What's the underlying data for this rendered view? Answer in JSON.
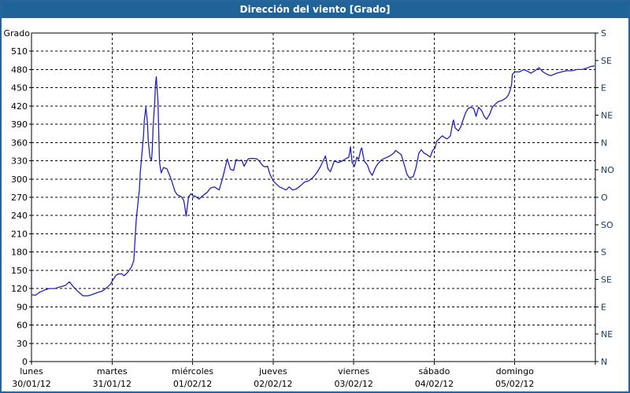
{
  "window": {
    "title": "Dirección del viento [Grado]"
  },
  "colors": {
    "titlebar_bg": "#1f6399",
    "titlebar_text": "#ffffff",
    "outer_border": "#27649c",
    "line": "#2222bb",
    "axis": "#000000",
    "grid": "#000000",
    "tick_text": "#000000",
    "compass_text": "#1b3a66"
  },
  "chart_data": {
    "type": "line",
    "title": "Dirección del viento [Grado]",
    "grid": "dashed",
    "legend_position": "none",
    "y_left": {
      "label": "Grado",
      "min": 0,
      "max": 540,
      "tick_step": 30,
      "ticks": [
        510,
        480,
        450,
        420,
        390,
        360,
        330,
        300,
        270,
        240,
        210,
        180,
        150,
        120,
        90,
        60,
        30,
        0
      ]
    },
    "y_right": {
      "label": "",
      "ticks": [
        {
          "value": 540,
          "label": "S"
        },
        {
          "value": 495,
          "label": "SE"
        },
        {
          "value": 450,
          "label": "E"
        },
        {
          "value": 405,
          "label": "NE"
        },
        {
          "value": 360,
          "label": "N"
        },
        {
          "value": 315,
          "label": "NO"
        },
        {
          "value": 270,
          "label": "O"
        },
        {
          "value": 225,
          "label": "SO"
        },
        {
          "value": 180,
          "label": "S"
        },
        {
          "value": 135,
          "label": "SE"
        },
        {
          "value": 90,
          "label": "E"
        },
        {
          "value": 45,
          "label": "NE"
        },
        {
          "value": 0,
          "label": "N"
        }
      ]
    },
    "x": {
      "span_days": 7,
      "days": [
        {
          "name": "lunes",
          "date": "30/01/12"
        },
        {
          "name": "martes",
          "date": "31/01/12"
        },
        {
          "name": "miércoles",
          "date": "01/02/12"
        },
        {
          "name": "jueves",
          "date": "02/02/12"
        },
        {
          "name": "viernes",
          "date": "03/02/12"
        },
        {
          "name": "sábado",
          "date": "04/02/12"
        },
        {
          "name": "domingo",
          "date": "05/02/12"
        }
      ]
    },
    "series": [
      {
        "name": "wind-direction-degrees",
        "units": "Grado",
        "points": [
          [
            0.0,
            110
          ],
          [
            0.05,
            109
          ],
          [
            0.1,
            114
          ],
          [
            0.17,
            118
          ],
          [
            0.22,
            120
          ],
          [
            0.29,
            120
          ],
          [
            0.36,
            123
          ],
          [
            0.42,
            125
          ],
          [
            0.47,
            131
          ],
          [
            0.52,
            123
          ],
          [
            0.57,
            116
          ],
          [
            0.64,
            108
          ],
          [
            0.7,
            108
          ],
          [
            0.75,
            110
          ],
          [
            0.81,
            113
          ],
          [
            0.88,
            116
          ],
          [
            0.93,
            121
          ],
          [
            0.98,
            127
          ],
          [
            1.01,
            134
          ],
          [
            1.05,
            142
          ],
          [
            1.08,
            144
          ],
          [
            1.12,
            144
          ],
          [
            1.15,
            141
          ],
          [
            1.19,
            146
          ],
          [
            1.24,
            155
          ],
          [
            1.27,
            166
          ],
          [
            1.3,
            233
          ],
          [
            1.32,
            258
          ],
          [
            1.34,
            284
          ],
          [
            1.35,
            310
          ],
          [
            1.37,
            340
          ],
          [
            1.39,
            371
          ],
          [
            1.4,
            396
          ],
          [
            1.42,
            418
          ],
          [
            1.44,
            392
          ],
          [
            1.45,
            362
          ],
          [
            1.47,
            336
          ],
          [
            1.49,
            331
          ],
          [
            1.5,
            349
          ],
          [
            1.51,
            388
          ],
          [
            1.53,
            427
          ],
          [
            1.54,
            457
          ],
          [
            1.55,
            468
          ],
          [
            1.57,
            427
          ],
          [
            1.58,
            375
          ],
          [
            1.59,
            327
          ],
          [
            1.61,
            310
          ],
          [
            1.64,
            319
          ],
          [
            1.68,
            317
          ],
          [
            1.71,
            308
          ],
          [
            1.74,
            297
          ],
          [
            1.78,
            280
          ],
          [
            1.81,
            274
          ],
          [
            1.86,
            271
          ],
          [
            1.89,
            265
          ],
          [
            1.9,
            258
          ],
          [
            1.92,
            239
          ],
          [
            1.93,
            250
          ],
          [
            1.95,
            271
          ],
          [
            1.98,
            276
          ],
          [
            2.0,
            273
          ],
          [
            2.03,
            272
          ],
          [
            2.08,
            267
          ],
          [
            2.12,
            272
          ],
          [
            2.18,
            278
          ],
          [
            2.22,
            285
          ],
          [
            2.27,
            287
          ],
          [
            2.33,
            282
          ],
          [
            2.37,
            300
          ],
          [
            2.43,
            333
          ],
          [
            2.47,
            316
          ],
          [
            2.51,
            314
          ],
          [
            2.54,
            332
          ],
          [
            2.57,
            330
          ],
          [
            2.61,
            331
          ],
          [
            2.64,
            321
          ],
          [
            2.69,
            333
          ],
          [
            2.74,
            334
          ],
          [
            2.8,
            333
          ],
          [
            2.83,
            329
          ],
          [
            2.87,
            322
          ],
          [
            2.9,
            320
          ],
          [
            2.93,
            321
          ],
          [
            2.96,
            308
          ],
          [
            3.0,
            297
          ],
          [
            3.03,
            293
          ],
          [
            3.08,
            287
          ],
          [
            3.13,
            284
          ],
          [
            3.16,
            282
          ],
          [
            3.2,
            287
          ],
          [
            3.24,
            282
          ],
          [
            3.29,
            284
          ],
          [
            3.34,
            289
          ],
          [
            3.39,
            295
          ],
          [
            3.44,
            297
          ],
          [
            3.49,
            302
          ],
          [
            3.54,
            310
          ],
          [
            3.59,
            321
          ],
          [
            3.65,
            338
          ],
          [
            3.68,
            317
          ],
          [
            3.71,
            312
          ],
          [
            3.76,
            330
          ],
          [
            3.81,
            327
          ],
          [
            3.86,
            330
          ],
          [
            3.91,
            334
          ],
          [
            3.94,
            336
          ],
          [
            3.96,
            353
          ],
          [
            3.98,
            327
          ],
          [
            4.01,
            321
          ],
          [
            4.04,
            336
          ],
          [
            4.06,
            332
          ],
          [
            4.09,
            349
          ],
          [
            4.1,
            351
          ],
          [
            4.13,
            330
          ],
          [
            4.17,
            323
          ],
          [
            4.2,
            312
          ],
          [
            4.23,
            306
          ],
          [
            4.27,
            319
          ],
          [
            4.3,
            325
          ],
          [
            4.35,
            332
          ],
          [
            4.4,
            335
          ],
          [
            4.45,
            338
          ],
          [
            4.5,
            343
          ],
          [
            4.52,
            347
          ],
          [
            4.56,
            343
          ],
          [
            4.59,
            340
          ],
          [
            4.62,
            327
          ],
          [
            4.66,
            308
          ],
          [
            4.69,
            302
          ],
          [
            4.74,
            304
          ],
          [
            4.77,
            317
          ],
          [
            4.81,
            343
          ],
          [
            4.84,
            348
          ],
          [
            4.87,
            343
          ],
          [
            4.91,
            340
          ],
          [
            4.95,
            336
          ],
          [
            4.98,
            347
          ],
          [
            5.01,
            351
          ],
          [
            5.03,
            362
          ],
          [
            5.06,
            366
          ],
          [
            5.1,
            371
          ],
          [
            5.13,
            368
          ],
          [
            5.16,
            366
          ],
          [
            5.2,
            371
          ],
          [
            5.23,
            394
          ],
          [
            5.24,
            397
          ],
          [
            5.26,
            384
          ],
          [
            5.3,
            379
          ],
          [
            5.33,
            386
          ],
          [
            5.35,
            394
          ],
          [
            5.39,
            409
          ],
          [
            5.42,
            416
          ],
          [
            5.45,
            418
          ],
          [
            5.49,
            416
          ],
          [
            5.52,
            403
          ],
          [
            5.55,
            418
          ],
          [
            5.59,
            412
          ],
          [
            5.62,
            403
          ],
          [
            5.65,
            398
          ],
          [
            5.69,
            407
          ],
          [
            5.72,
            418
          ],
          [
            5.75,
            422
          ],
          [
            5.79,
            427
          ],
          [
            5.84,
            429
          ],
          [
            5.89,
            433
          ],
          [
            5.92,
            438
          ],
          [
            5.94,
            445
          ],
          [
            5.96,
            455
          ],
          [
            5.97,
            472
          ],
          [
            6.0,
            476
          ],
          [
            6.03,
            476
          ],
          [
            6.06,
            476
          ],
          [
            6.11,
            480
          ],
          [
            6.16,
            477
          ],
          [
            6.2,
            474
          ],
          [
            6.25,
            478
          ],
          [
            6.3,
            483
          ],
          [
            6.35,
            476
          ],
          [
            6.4,
            472
          ],
          [
            6.45,
            470
          ],
          [
            6.52,
            474
          ],
          [
            6.58,
            476
          ],
          [
            6.64,
            478
          ],
          [
            6.71,
            478
          ],
          [
            6.77,
            480
          ],
          [
            6.84,
            480
          ],
          [
            6.91,
            483
          ],
          [
            6.94,
            485
          ],
          [
            6.99,
            486
          ]
        ]
      }
    ]
  }
}
